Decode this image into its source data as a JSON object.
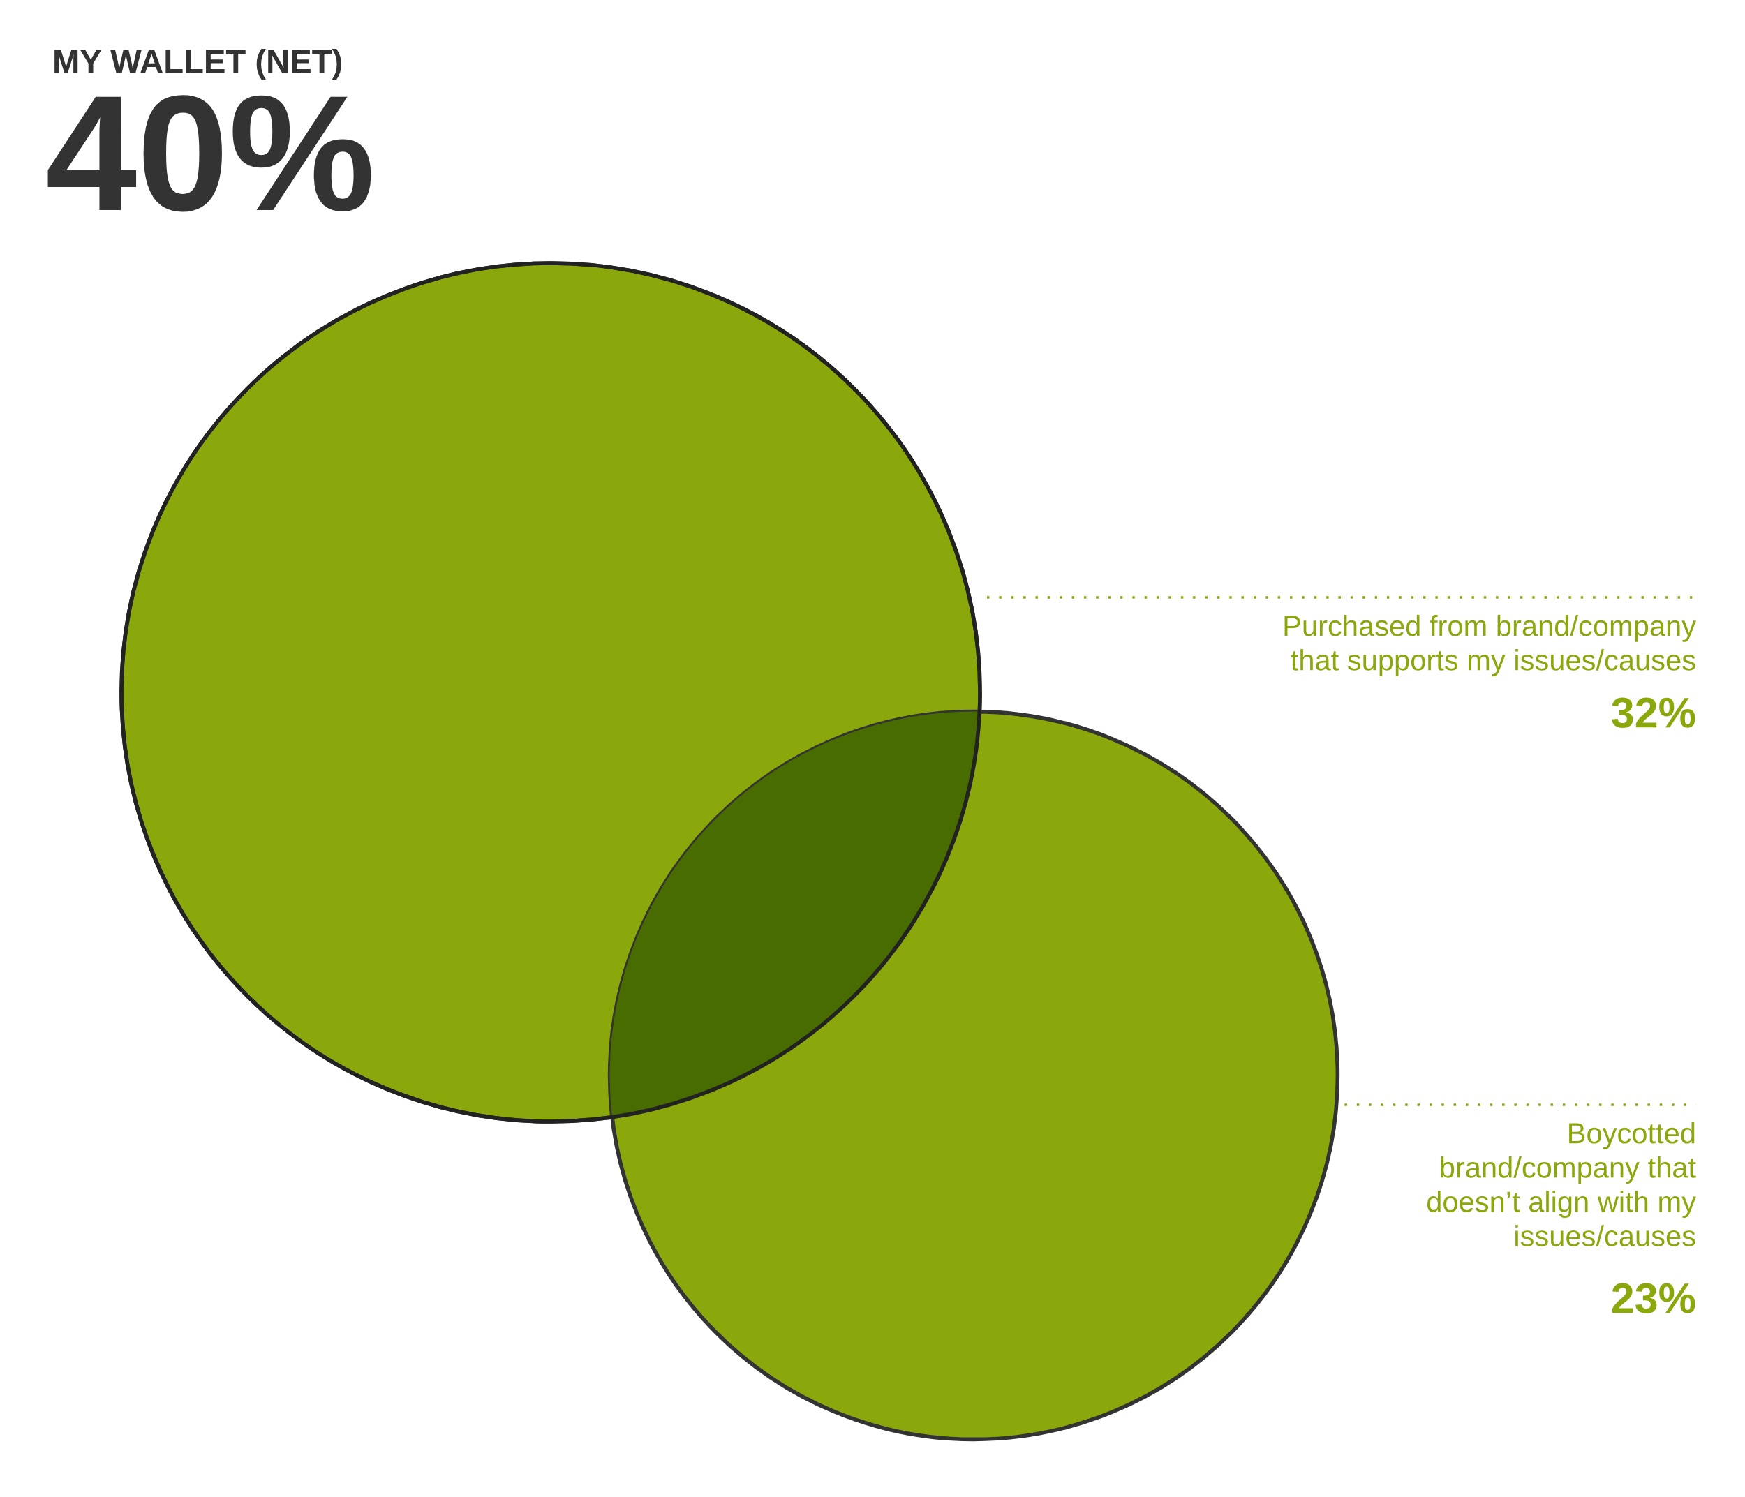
{
  "chart_data": {
    "type": "other",
    "title": "MY WALLET (NET)",
    "annotations": [
      "40%"
    ],
    "categories": [
      "Purchased from brand/company\nthat supports my issues/causes",
      "Boycotted\nbrand/company that\ndoesn’t align with my\nissues/causes"
    ],
    "values": [
      32,
      23
    ],
    "value_labels": [
      "32%",
      "23%"
    ],
    "colors": [
      "#8aa70c",
      "#8aa70c"
    ]
  }
}
